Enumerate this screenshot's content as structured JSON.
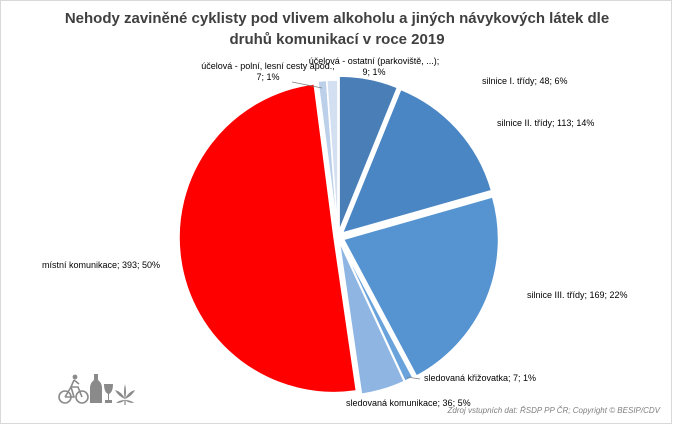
{
  "chart_data": {
    "type": "pie",
    "title": "Nehody zaviněné cyklisty pod vlivem alkoholu a jiných návykových látek dle druhů komunikací v roce 2019",
    "slices": [
      {
        "label": "silnice I. třídy",
        "value": 48,
        "percent": "6%",
        "color": "#4a7eb7"
      },
      {
        "label": "silnice II. třídy",
        "value": 113,
        "percent": "14%",
        "color": "#4a86c4"
      },
      {
        "label": "silnice III. třídy",
        "value": 169,
        "percent": "22%",
        "color": "#5594d1"
      },
      {
        "label": "sledovaná křižovatka",
        "value": 7,
        "percent": "1%",
        "color": "#6aa3dc"
      },
      {
        "label": "sledovaná komunikace",
        "value": 36,
        "percent": "5%",
        "color": "#8fb6e3"
      },
      {
        "label": "místní komunikace",
        "value": 393,
        "percent": "50%",
        "color": "#ff0000"
      },
      {
        "label": "účelová - polní, lesní cesty apod.",
        "value": 7,
        "percent": "1%",
        "color": "#bcd0ea"
      },
      {
        "label": "účelová - ostatní (parkoviště, ...)",
        "value": 9,
        "percent": "1%",
        "color": "#d3e0f1"
      }
    ],
    "legend": "none"
  },
  "source": "Zdroj vstupních dat: ŘSDP PP ČR; Copyright © BESIP/CDV",
  "icons": [
    "cyclist-icon",
    "bottle-glass-icon",
    "cannabis-leaf-icon"
  ]
}
